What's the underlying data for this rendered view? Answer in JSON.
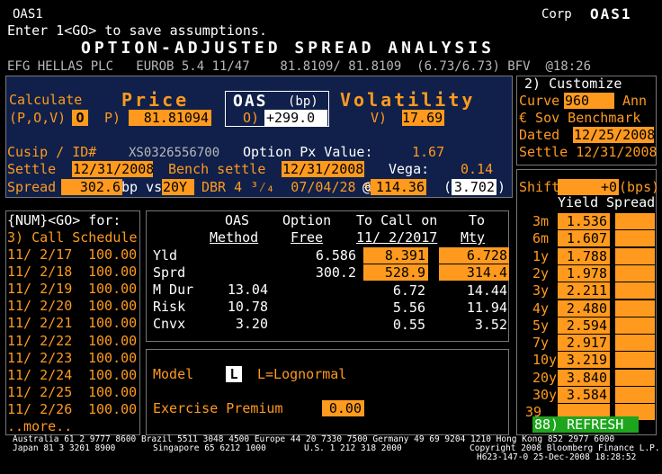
{
  "header": {
    "security_short": "OAS1",
    "sector": "Corp",
    "function": "OAS1",
    "instruction": "Enter 1<GO> to save assumptions.",
    "title": "OPTION-ADJUSTED SPREAD ANALYSIS",
    "security_line": "EFG HELLAS PLC   EUROB 5.4 11/47    81.8109/ 81.8109  (6.73/6.73) BFV  @18:26"
  },
  "calc": {
    "calculate_label": "Calculate",
    "mode_hint": "(P,O,V)",
    "mode_value": "O",
    "price_title": "Price",
    "price_prefix": "P)",
    "price_value": "81.81094",
    "oas_title_main": "OAS",
    "oas_title_unit": "(bp)",
    "oas_prefix": "O)",
    "oas_value": "+299.0",
    "vol_title": "Volatility",
    "vol_prefix": "V)",
    "vol_value": "17.69"
  },
  "details": {
    "cusip_label": "Cusip / ID#",
    "cusip_value": "XS0326556700",
    "option_px_label": "Option Px Value:",
    "option_px_value": "1.67",
    "settle_label": "Settle",
    "settle_value": "12/31/2008",
    "bench_settle_label": "Bench settle",
    "bench_settle_value": "12/31/2008",
    "vega_label": "Vega:",
    "vega_value": "0.14",
    "spread_label": "Spread",
    "spread_value": "302.6",
    "bp_vs": "bp vs",
    "bench_term": "20Y",
    "bench_bond": "DBR 4 ³⁄₄  07/04/28 €v",
    "at_sign": "@",
    "bench_price": "114.36",
    "paren_open": "(",
    "bench_yield": "3.702",
    "paren_close": ")"
  },
  "customize": {
    "title": "2) Customize",
    "curve_label": "Curve",
    "curve_value": "960",
    "curve_basis": "Ann",
    "sov_label": "€ Sov Benchmark",
    "dated_label": "Dated",
    "dated_value": "12/25/2008",
    "settle_label": "Settle 12/31/2008"
  },
  "shift": {
    "label": "Shift",
    "value": "+0",
    "unit": "(bps)"
  },
  "curve_table": {
    "col_yield": "Yield",
    "col_spread": "Spread",
    "rows": [
      {
        "term": "3m",
        "yield": "1.536"
      },
      {
        "term": "6m",
        "yield": "1.607"
      },
      {
        "term": "1y",
        "yield": "1.788"
      },
      {
        "term": "2y",
        "yield": "1.978"
      },
      {
        "term": "3y",
        "yield": "2.211"
      },
      {
        "term": "4y",
        "yield": "2.480"
      },
      {
        "term": "5y",
        "yield": "2.594"
      },
      {
        "term": "7y",
        "yield": "2.917"
      },
      {
        "term": "10y",
        "yield": "3.219"
      },
      {
        "term": "20y",
        "yield": "3.840"
      },
      {
        "term": "30y",
        "yield": "3.584"
      },
      {
        "term": "39",
        "yield": ""
      }
    ],
    "refresh": "88) REFRESH"
  },
  "call_schedule": {
    "header": "{NUM}<GO> for:",
    "title": "3) Call Schedule",
    "rows": [
      {
        "date": "11/ 2/17",
        "price": "100.00"
      },
      {
        "date": "11/ 2/18",
        "price": "100.00"
      },
      {
        "date": "11/ 2/19",
        "price": "100.00"
      },
      {
        "date": "11/ 2/20",
        "price": "100.00"
      },
      {
        "date": "11/ 2/21",
        "price": "100.00"
      },
      {
        "date": "11/ 2/22",
        "price": "100.00"
      },
      {
        "date": "11/ 2/23",
        "price": "100.00"
      },
      {
        "date": "11/ 2/24",
        "price": "100.00"
      },
      {
        "date": "11/ 2/25",
        "price": "100.00"
      },
      {
        "date": "11/ 2/26",
        "price": "100.00"
      }
    ],
    "more": "..more.."
  },
  "analytics": {
    "col1_a": "OAS",
    "col1_b": "Method",
    "col2_a": "Option",
    "col2_b": "Free",
    "col3_a": "To Call on",
    "col3_b": "11/ 2/2017",
    "col4_a": "To",
    "col4_b": "Mty",
    "rows": [
      {
        "label": "Yld",
        "oas": "",
        "free": "6.586",
        "call": "8.391",
        "mty": "6.728"
      },
      {
        "label": "Sprd",
        "oas": "",
        "free": "300.2",
        "call": "528.9",
        "mty": "314.4"
      },
      {
        "label": "M Dur",
        "oas": "13.04",
        "free": "",
        "call": "6.72",
        "mty": "14.44"
      },
      {
        "label": "Risk",
        "oas": "10.78",
        "free": "",
        "call": "5.56",
        "mty": "11.94"
      },
      {
        "label": "Cnvx",
        "oas": "3.20",
        "free": "",
        "call": "0.55",
        "mty": "3.52"
      }
    ]
  },
  "model": {
    "label": "Model",
    "value": "L",
    "desc": "L=Lognormal",
    "exercise_label": "Exercise Premium",
    "exercise_value": "0.00"
  },
  "footer": {
    "line1": "Australia 61 2 9777 8600 Brazil 5511 3048 4500 Europe 44 20 7330 7500 Germany 49 69 9204 1210 Hong Kong 852 2977 6000",
    "line2a": "Japan 81 3 3201 8900",
    "line2b": "Singapore 65 6212 1000",
    "line2c": "U.S. 1 212 318 2000",
    "line2d": "Copyright 2008 Bloomberg Finance L.P.",
    "line3": "H623-147-0 25-Dec-2008 18:28:52"
  },
  "colors": {
    "amber": "#ff9a1e",
    "navy": "#10204a",
    "refresh_green": "#1ea51e"
  }
}
